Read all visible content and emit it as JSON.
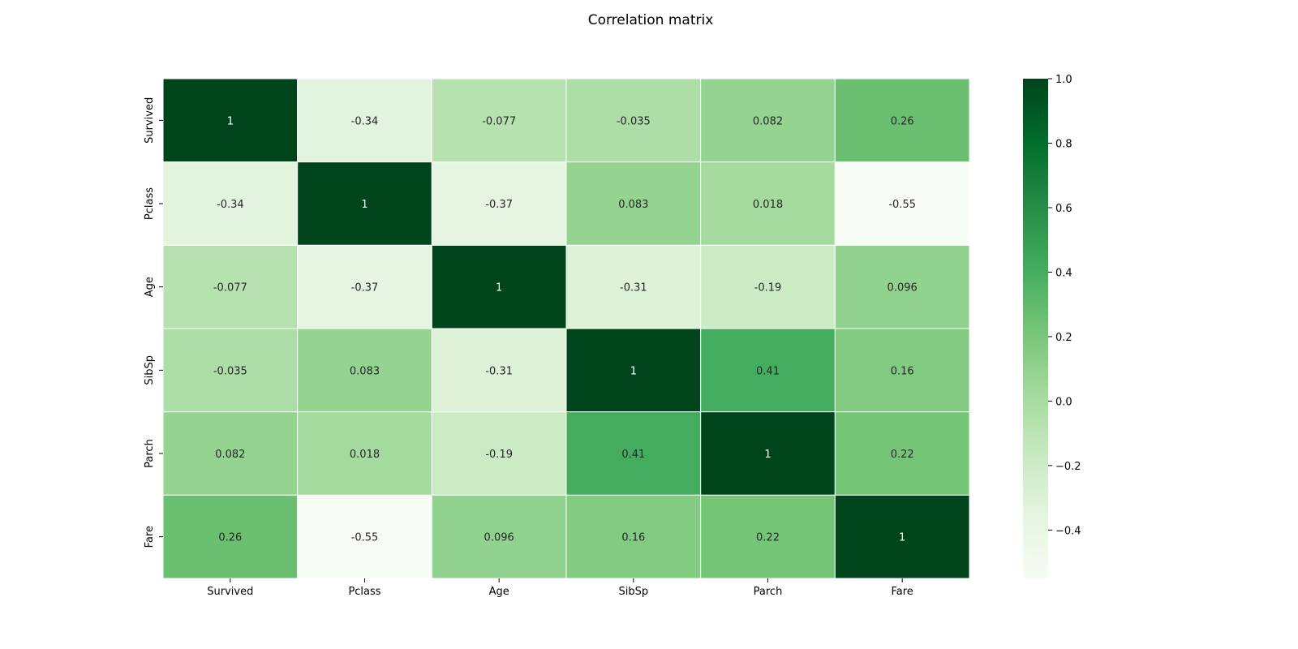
{
  "chart_data": {
    "type": "heatmap",
    "title": "Correlation matrix",
    "x_labels": [
      "Survived",
      "Pclass",
      "Age",
      "SibSp",
      "Parch",
      "Fare"
    ],
    "y_labels": [
      "Survived",
      "Pclass",
      "Age",
      "SibSp",
      "Parch",
      "Fare"
    ],
    "values": [
      [
        1,
        -0.34,
        -0.077,
        -0.035,
        0.082,
        0.26
      ],
      [
        -0.34,
        1,
        -0.37,
        0.083,
        0.018,
        -0.55
      ],
      [
        -0.077,
        -0.37,
        1,
        -0.31,
        -0.19,
        0.096
      ],
      [
        -0.035,
        0.083,
        -0.31,
        1,
        0.41,
        0.16
      ],
      [
        0.082,
        0.018,
        -0.19,
        0.41,
        1,
        0.22
      ],
      [
        0.26,
        -0.55,
        0.096,
        0.16,
        0.22,
        1
      ]
    ],
    "cell_labels": [
      [
        "1",
        "-0.34",
        "-0.077",
        "-0.035",
        "0.082",
        "0.26"
      ],
      [
        "-0.34",
        "1",
        "-0.37",
        "0.083",
        "0.018",
        "-0.55"
      ],
      [
        "-0.077",
        "-0.37",
        "1",
        "-0.31",
        "-0.19",
        "0.096"
      ],
      [
        "-0.035",
        "0.083",
        "-0.31",
        "1",
        "0.41",
        "0.16"
      ],
      [
        "0.082",
        "0.018",
        "-0.19",
        "0.41",
        "1",
        "0.22"
      ],
      [
        "0.26",
        "-0.55",
        "0.096",
        "0.16",
        "0.22",
        "1"
      ]
    ],
    "colormap": "Greens",
    "vmin": -0.55,
    "vmax": 1.0,
    "colorbar_ticks": [
      1.0,
      0.8,
      0.6,
      0.4,
      0.2,
      0.0,
      -0.2,
      -0.4
    ],
    "colorbar_tick_labels": [
      "1.0",
      "0.8",
      "0.6",
      "0.4",
      "0.2",
      "0.0",
      "−0.2",
      "−0.4"
    ],
    "grid": false,
    "colorbar_position": "right"
  }
}
